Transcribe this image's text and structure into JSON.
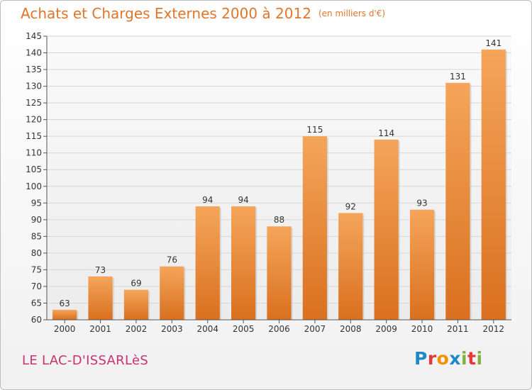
{
  "header": {
    "title": "Achats et Charges Externes 2000 à 2012",
    "unit": "(en milliers d'€)"
  },
  "footer": {
    "commune": "LE LAC-D'ISSARLèS",
    "logo": {
      "text": "Proxiti",
      "colors": [
        "#1e88c8",
        "#e53935",
        "#f39200",
        "#1e88c8",
        "#7cb342",
        "#e53935",
        "#7cb342"
      ]
    }
  },
  "colors": {
    "bar_top": "#f5a55a",
    "bar_bottom": "#d9701f",
    "title": "#e0762c",
    "commune": "#c8326f"
  },
  "chart_data": {
    "type": "bar",
    "categories": [
      "2000",
      "2001",
      "2002",
      "2003",
      "2004",
      "2005",
      "2006",
      "2007",
      "2008",
      "2009",
      "2010",
      "2011",
      "2012"
    ],
    "values": [
      63,
      73,
      69,
      76,
      94,
      94,
      88,
      115,
      92,
      114,
      93,
      131,
      141
    ],
    "ylim": [
      60,
      145
    ],
    "yticks": [
      60,
      65,
      70,
      75,
      80,
      85,
      90,
      95,
      100,
      105,
      110,
      115,
      120,
      125,
      130,
      135,
      140,
      145
    ],
    "grid": true,
    "legend": "none"
  }
}
